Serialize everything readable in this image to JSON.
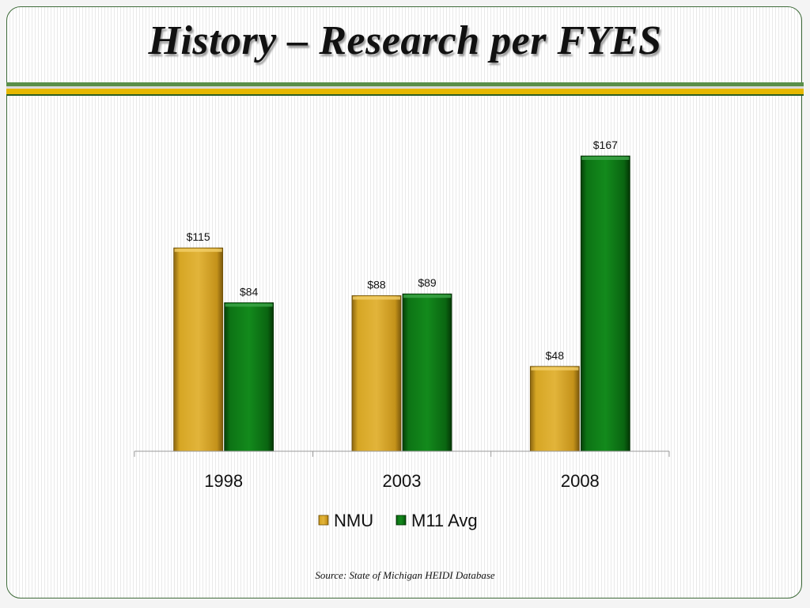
{
  "slide": {
    "title": "History – Research per FYES",
    "source": "Source:  State of Michigan HEIDI Database"
  },
  "colors": {
    "nmu_gold": "#c9981a",
    "m11_green": "#0b6b12",
    "frame": "#3e6b39"
  },
  "chart_data": {
    "type": "bar",
    "title": "",
    "xlabel": "",
    "ylabel": "",
    "categories": [
      "1998",
      "2003",
      "2008"
    ],
    "series": [
      {
        "name": "NMU",
        "values": [
          115,
          88,
          48
        ],
        "labels": [
          "$115",
          "$88",
          "$48"
        ],
        "color": "#c9981a"
      },
      {
        "name": "M11 Avg",
        "values": [
          84,
          89,
          167
        ],
        "labels": [
          "$84",
          "$89",
          "$167"
        ],
        "color": "#0b6b12"
      }
    ],
    "ylim": [
      0,
      180
    ],
    "grid": false,
    "legend": "bottom"
  }
}
